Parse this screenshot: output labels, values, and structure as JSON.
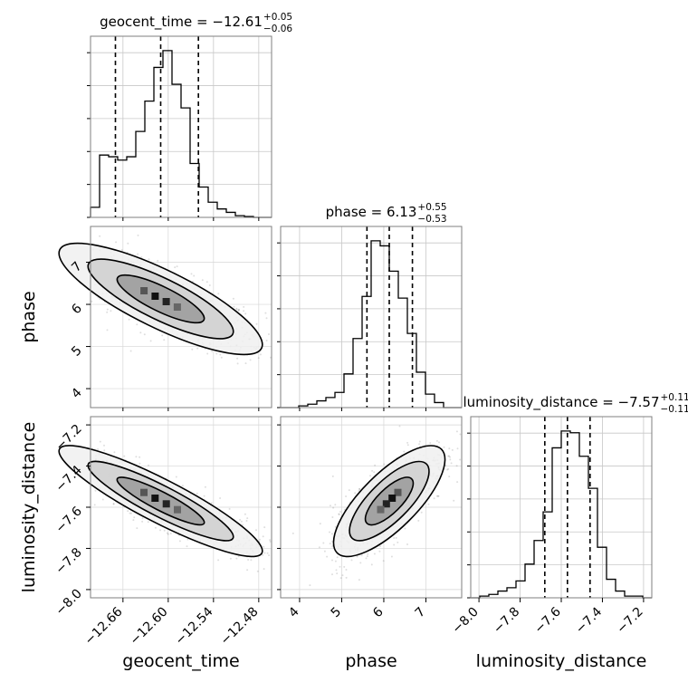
{
  "chart_data": {
    "type": "corner",
    "parameters": [
      "geocent_time",
      "phase",
      "luminosity_distance"
    ],
    "titles": [
      {
        "label": "geocent_time",
        "median": "−12.61",
        "plus": "+0.05",
        "minus": "−0.06"
      },
      {
        "label": "phase",
        "median": "6.13",
        "plus": "+0.55",
        "minus": "−0.53"
      },
      {
        "label": "luminosity_distance",
        "median": "−7.57",
        "plus": "+0.11",
        "minus": "−0.11"
      }
    ],
    "ranges": [
      [
        -12.703,
        -12.463
      ],
      [
        3.55,
        7.85
      ],
      [
        -8.04,
        -7.16
      ]
    ],
    "ticks": [
      {
        "values": [
          -12.66,
          -12.6,
          -12.54,
          -12.48
        ],
        "labels": [
          "−12.66",
          "−12.60",
          "−12.54",
          "−12.48"
        ]
      },
      {
        "values": [
          4,
          5,
          6,
          7
        ],
        "labels": [
          "4",
          "5",
          "6",
          "7"
        ]
      },
      {
        "values": [
          -8.0,
          -7.8,
          -7.6,
          -7.4,
          -7.2
        ],
        "labels": [
          "−8.0",
          "−7.8",
          "−7.6",
          "−7.4",
          "−7.2"
        ]
      }
    ],
    "quantiles": [
      [
        -12.67,
        -12.61,
        -12.56
      ],
      [
        5.6,
        6.13,
        6.68
      ],
      [
        -7.68,
        -7.57,
        -7.46
      ]
    ],
    "histograms": [
      {
        "counts": [
          0.06,
          0.37,
          0.36,
          0.34,
          0.36,
          0.51,
          0.69,
          0.89,
          0.99,
          0.79,
          0.65,
          0.32,
          0.18,
          0.09,
          0.05,
          0.03,
          0.01,
          0.005,
          0.0,
          0.0
        ]
      },
      {
        "counts": [
          0.0,
          0.0,
          0.01,
          0.02,
          0.04,
          0.06,
          0.09,
          0.2,
          0.41,
          0.66,
          0.99,
          0.96,
          0.81,
          0.65,
          0.44,
          0.21,
          0.08,
          0.03,
          0.0,
          0.0
        ]
      },
      {
        "counts": [
          0.0,
          0.01,
          0.02,
          0.04,
          0.06,
          0.1,
          0.2,
          0.34,
          0.51,
          0.89,
          0.99,
          0.98,
          0.84,
          0.65,
          0.3,
          0.11,
          0.04,
          0.01,
          0.01,
          0.0
        ]
      }
    ],
    "pairs": [
      {
        "x": 0,
        "y": 1,
        "corr": -0.82
      },
      {
        "x": 0,
        "y": 2,
        "corr": -0.9
      },
      {
        "x": 1,
        "y": 2,
        "corr": 0.75
      }
    ],
    "grid": true
  }
}
